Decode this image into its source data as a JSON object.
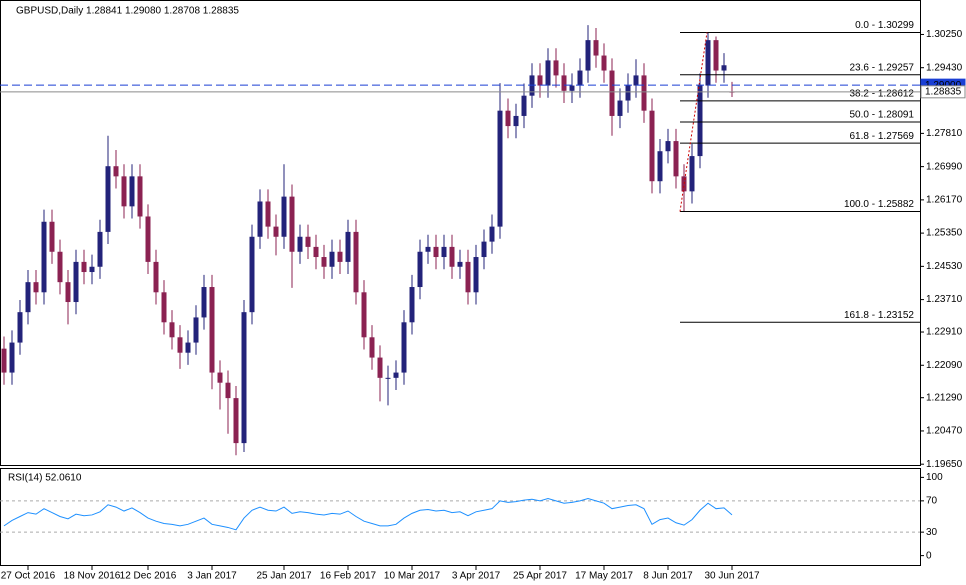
{
  "chart_data": [
    {
      "type": "candlestick",
      "title": "GBPUSD,Daily  1.28841 1.29080 1.28708 1.28835",
      "categories": [
        null,
        null,
        null,
        "27 Oct 2016",
        null,
        null,
        null,
        null,
        null,
        null,
        null,
        "18 Nov 2016",
        null,
        null,
        null,
        null,
        null,
        null,
        "12 Dec 2016",
        null,
        null,
        null,
        null,
        null,
        null,
        null,
        "3 Jan 2017",
        null,
        null,
        null,
        null,
        null,
        null,
        null,
        null,
        "25 Jan 2017",
        null,
        null,
        null,
        null,
        null,
        null,
        null,
        "16 Feb 2017",
        null,
        null,
        null,
        null,
        null,
        null,
        null,
        "10 Mar 2017",
        null,
        null,
        null,
        null,
        null,
        null,
        null,
        "3 Apr 2017",
        null,
        null,
        null,
        null,
        null,
        null,
        null,
        "25 Apr 2017",
        null,
        null,
        null,
        null,
        null,
        null,
        null,
        "17 May 2017",
        null,
        null,
        null,
        null,
        null,
        null,
        null,
        "8 Jun 2017",
        null,
        null,
        null,
        null,
        null,
        null,
        null,
        "30 Jun 2017"
      ],
      "open": [
        1.225,
        1.2191,
        1.2265,
        1.234,
        1.2414,
        1.2389,
        1.2563,
        1.2489,
        1.2414,
        1.2365,
        1.2464,
        1.2439,
        1.2452,
        1.2538,
        1.27,
        1.2675,
        1.2601,
        1.2675,
        1.2576,
        1.2464,
        1.2389,
        1.2315,
        1.2278,
        1.224,
        1.2265,
        1.2327,
        1.2402,
        1.2191,
        1.2166,
        1.2128,
        1.2017,
        1.234,
        1.2526,
        1.2613,
        1.2551,
        1.2526,
        1.2625,
        1.2489,
        1.2526,
        1.2501,
        1.2476,
        1.2452,
        1.2489,
        1.2464,
        1.2538,
        1.2389,
        1.2278,
        1.2228,
        1.2178,
        1.2178,
        1.2191,
        1.2315,
        1.2402,
        1.2489,
        1.2501,
        1.2476,
        1.2501,
        1.2452,
        1.2464,
        1.2389,
        1.2476,
        1.2514,
        1.2551,
        1.2837,
        1.2799,
        1.2824,
        1.2874,
        1.2924,
        1.2899,
        1.2961,
        1.2924,
        1.2886,
        1.2899,
        1.2936,
        1.3011,
        1.2973,
        1.2936,
        1.2824,
        1.2862,
        1.2899,
        1.2924,
        1.2837,
        1.2663,
        1.2737,
        1.2762,
        1.2675,
        1.2638,
        1.2725,
        1.2899,
        1.3011,
        1.2936,
        1.28841
      ],
      "high": [
        1.228,
        1.2295,
        1.237,
        1.2444,
        1.2444,
        1.2593,
        1.2593,
        1.2519,
        1.2444,
        1.2494,
        1.2494,
        1.2482,
        1.2568,
        1.2775,
        1.274,
        1.2705,
        1.2705,
        1.2705,
        1.2606,
        1.2494,
        1.2419,
        1.2345,
        1.2308,
        1.2295,
        1.2357,
        1.2432,
        1.2432,
        1.2221,
        1.2196,
        1.2158,
        1.237,
        1.2556,
        1.2643,
        1.2643,
        1.2581,
        1.2705,
        1.2655,
        1.2556,
        1.2556,
        1.2531,
        1.2506,
        1.2519,
        1.2519,
        1.2568,
        1.2568,
        1.2419,
        1.2308,
        1.2258,
        1.2208,
        1.2221,
        1.2345,
        1.2432,
        1.2519,
        1.2531,
        1.2531,
        1.2531,
        1.2531,
        1.2494,
        1.2494,
        1.2506,
        1.2544,
        1.2581,
        1.2905,
        1.2867,
        1.2854,
        1.2904,
        1.2954,
        1.2954,
        1.2991,
        1.2991,
        1.2954,
        1.2929,
        1.2966,
        1.3048,
        1.3041,
        1.3003,
        1.2966,
        1.2892,
        1.2929,
        1.2964,
        1.2954,
        1.2867,
        1.2767,
        1.2792,
        1.2792,
        1.2705,
        1.2755,
        1.2929,
        1.303,
        1.302,
        1.2979,
        1.2908
      ],
      "low": [
        1.2161,
        1.2161,
        1.2235,
        1.231,
        1.2359,
        1.2359,
        1.2459,
        1.2384,
        1.231,
        1.2335,
        1.2409,
        1.2409,
        1.2422,
        1.2508,
        1.2645,
        1.2571,
        1.2571,
        1.2546,
        1.2434,
        1.2359,
        1.2285,
        1.2248,
        1.22,
        1.221,
        1.2235,
        1.2297,
        1.215,
        1.21,
        1.204,
        1.1987,
        1.1995,
        1.231,
        1.2496,
        1.2521,
        1.248,
        1.2496,
        1.24,
        1.2459,
        1.2471,
        1.2446,
        1.2422,
        1.2422,
        1.2434,
        1.2434,
        1.2359,
        1.2248,
        1.2198,
        1.212,
        1.211,
        1.2148,
        1.2161,
        1.2285,
        1.2372,
        1.2459,
        1.2446,
        1.2446,
        1.2422,
        1.2422,
        1.2359,
        1.2359,
        1.2446,
        1.2484,
        1.2521,
        1.2769,
        1.2769,
        1.2794,
        1.2844,
        1.2869,
        1.2869,
        1.2894,
        1.2856,
        1.2856,
        1.2869,
        1.2906,
        1.2943,
        1.2906,
        1.2775,
        1.2794,
        1.2832,
        1.2869,
        1.2807,
        1.2633,
        1.2633,
        1.2707,
        1.2645,
        1.2588,
        1.2608,
        1.2695,
        1.2869,
        1.2906,
        1.2906,
        1.28708
      ],
      "close": [
        1.2191,
        1.2265,
        1.234,
        1.2414,
        1.2389,
        1.2563,
        1.2489,
        1.2414,
        1.2365,
        1.2464,
        1.2439,
        1.2452,
        1.2538,
        1.27,
        1.2675,
        1.2601,
        1.2675,
        1.2576,
        1.2464,
        1.2389,
        1.2315,
        1.2278,
        1.224,
        1.2265,
        1.2327,
        1.2402,
        1.2191,
        1.2166,
        1.2128,
        1.2017,
        1.234,
        1.2526,
        1.2613,
        1.2551,
        1.2526,
        1.2625,
        1.2489,
        1.2526,
        1.2501,
        1.2476,
        1.2452,
        1.2489,
        1.2464,
        1.2538,
        1.2389,
        1.2278,
        1.2228,
        1.2178,
        1.2178,
        1.2191,
        1.2315,
        1.2402,
        1.2489,
        1.2501,
        1.2476,
        1.2501,
        1.2452,
        1.2464,
        1.2389,
        1.2476,
        1.2514,
        1.2551,
        1.2837,
        1.2799,
        1.2824,
        1.2874,
        1.2924,
        1.2899,
        1.2961,
        1.2924,
        1.2886,
        1.2899,
        1.2936,
        1.3011,
        1.2973,
        1.2936,
        1.2824,
        1.2862,
        1.2899,
        1.2924,
        1.2837,
        1.2663,
        1.2737,
        1.2762,
        1.2675,
        1.2638,
        1.2725,
        1.2899,
        1.3011,
        1.2936,
        1.2949,
        1.28835
      ],
      "up_color": "#23237a",
      "down_color": "#8b2252",
      "ylim": [
        1.1963,
        1.311
      ],
      "yticks": [
        {
          "value": 1.3025,
          "label": "1.30250"
        },
        {
          "value": 1.2943,
          "label": "1.29430"
        },
        {
          "value": 1.2781,
          "label": "1.27810"
        },
        {
          "value": 1.2699,
          "label": "1.26990"
        },
        {
          "value": 1.2617,
          "label": "1.26170"
        },
        {
          "value": 1.2535,
          "label": "1.25350"
        },
        {
          "value": 1.2453,
          "label": "1.24530"
        },
        {
          "value": 1.2371,
          "label": "1.23710"
        },
        {
          "value": 1.2291,
          "label": "1.22910"
        },
        {
          "value": 1.2209,
          "label": "1.22090"
        },
        {
          "value": 1.2129,
          "label": "1.21290"
        },
        {
          "value": 1.2047,
          "label": "1.20470"
        },
        {
          "value": 1.1965,
          "label": "1.19650"
        }
      ],
      "fib_levels": [
        {
          "label": "0.0 - 1.30299",
          "value": 1.30299
        },
        {
          "label": "23.6 - 1.29257",
          "value": 1.29257
        },
        {
          "label": "38.2 - 1.28612",
          "value": 1.28612
        },
        {
          "label": "50.0 - 1.28091",
          "value": 1.28091
        },
        {
          "label": "61.8 - 1.27569",
          "value": 1.27569
        },
        {
          "label": "100.0 - 1.25882",
          "value": 1.25882
        },
        {
          "label": "161.8 - 1.23152",
          "value": 1.23152
        }
      ],
      "fib_color": "#000000",
      "fib_anchor_color": "#cc0000",
      "hlines": [
        {
          "value": 1.29,
          "label": "1.29000",
          "color": "#1a3fd4",
          "dashed": true
        },
        {
          "value": 1.28835,
          "label": "1.28835",
          "color": "#8a8a8a",
          "dashed": false
        }
      ]
    },
    {
      "type": "line",
      "title": "RSI(14) 52.0610",
      "color": "#1e90ff",
      "values": [
        38,
        45,
        50,
        55,
        53,
        60,
        55,
        50,
        47,
        53,
        51,
        52,
        56,
        65,
        62,
        57,
        61,
        55,
        48,
        44,
        41,
        40,
        38,
        40,
        44,
        48,
        40,
        38,
        36,
        33,
        48,
        58,
        62,
        58,
        57,
        62,
        54,
        56,
        55,
        53,
        52,
        54,
        53,
        57,
        50,
        44,
        41,
        38,
        38,
        40,
        48,
        54,
        58,
        59,
        57,
        58,
        55,
        56,
        51,
        56,
        58,
        60,
        70,
        68,
        69,
        71,
        72,
        70,
        73,
        70,
        67,
        68,
        70,
        73,
        70,
        67,
        60,
        62,
        64,
        65,
        60,
        40,
        46,
        48,
        42,
        39,
        46,
        58,
        67,
        60,
        61,
        52.061
      ],
      "ylim": [
        -12,
        112
      ],
      "yticks": [
        100,
        70,
        30,
        0
      ],
      "levels": [
        70,
        30
      ]
    }
  ]
}
